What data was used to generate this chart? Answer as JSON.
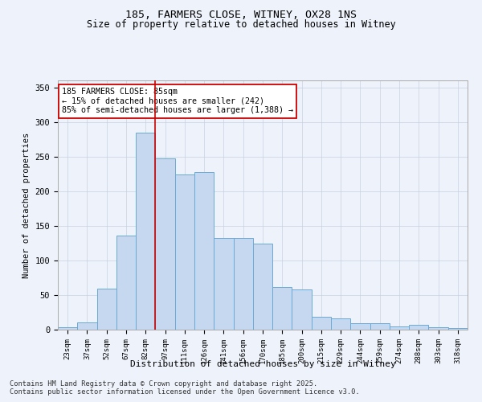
{
  "title1": "185, FARMERS CLOSE, WITNEY, OX28 1NS",
  "title2": "Size of property relative to detached houses in Witney",
  "xlabel": "Distribution of detached houses by size in Witney",
  "ylabel": "Number of detached properties",
  "categories": [
    "23sqm",
    "37sqm",
    "52sqm",
    "67sqm",
    "82sqm",
    "97sqm",
    "111sqm",
    "126sqm",
    "141sqm",
    "156sqm",
    "170sqm",
    "185sqm",
    "200sqm",
    "215sqm",
    "229sqm",
    "244sqm",
    "259sqm",
    "274sqm",
    "288sqm",
    "303sqm",
    "318sqm"
  ],
  "values": [
    3,
    10,
    59,
    136,
    285,
    247,
    224,
    228,
    132,
    132,
    124,
    62,
    58,
    19,
    16,
    9,
    9,
    5,
    7,
    3,
    2
  ],
  "bar_color": "#c5d8f0",
  "bar_edge_color": "#6aaad4",
  "annotation_line1": "185 FARMERS CLOSE: 85sqm",
  "annotation_line2": "← 15% of detached houses are smaller (242)",
  "annotation_line3": "85% of semi-detached houses are larger (1,388) →",
  "vline_index": 4,
  "redline_color": "#cc0000",
  "annotation_box_facecolor": "#ffffff",
  "annotation_box_edgecolor": "#cc0000",
  "footer1": "Contains HM Land Registry data © Crown copyright and database right 2025.",
  "footer2": "Contains public sector information licensed under the Open Government Licence v3.0.",
  "bg_color": "#eef2fb",
  "ylim": [
    0,
    360
  ],
  "yticks": [
    0,
    50,
    100,
    150,
    200,
    250,
    300,
    350
  ]
}
